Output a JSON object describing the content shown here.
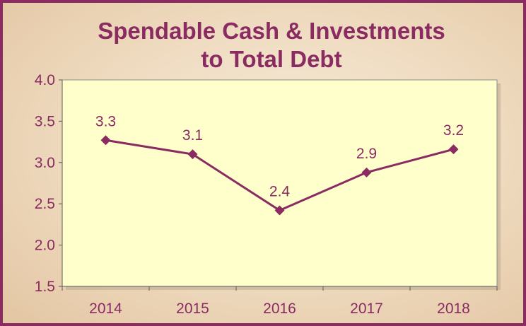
{
  "chart_data": {
    "type": "line",
    "title_lines": [
      "Spendable Cash & Investments",
      "to Total Debt"
    ],
    "categories": [
      "2014",
      "2015",
      "2016",
      "2017",
      "2018"
    ],
    "values": [
      3.27,
      3.1,
      2.42,
      2.88,
      3.16
    ],
    "data_labels": [
      "3.3",
      "3.1",
      "2.4",
      "2.9",
      "3.2"
    ],
    "ylim": [
      1.5,
      4.0
    ],
    "y_ticks": [
      "1.5",
      "2.0",
      "2.5",
      "3.0",
      "3.5",
      "4.0"
    ],
    "grid": false,
    "legend": "none",
    "marker": "diamond",
    "colors": {
      "line": "#8a2b62",
      "plot_area": "#ffffcc",
      "border": "#8a2b62",
      "text": "#8a2b62"
    }
  }
}
